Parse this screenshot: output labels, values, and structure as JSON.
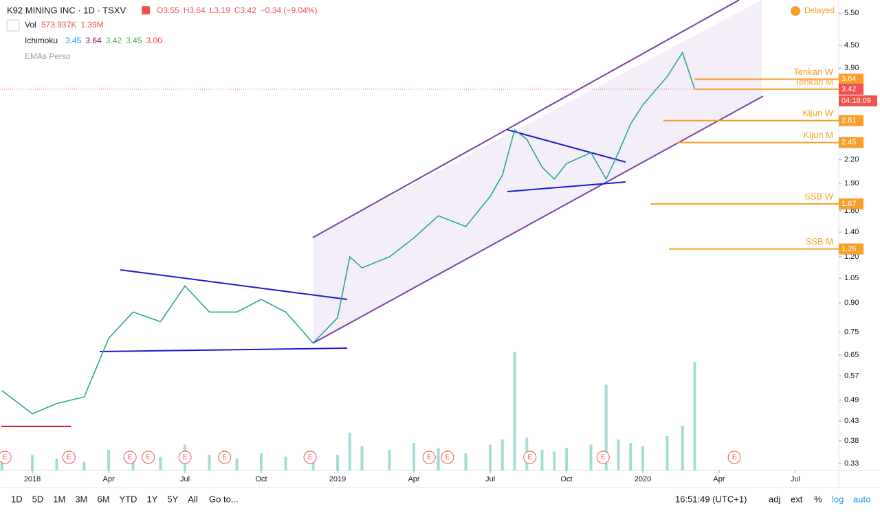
{
  "header": {
    "symbol": "K92 MINING INC · 1D · TSXV",
    "ohlc": [
      "O3.55",
      "H3.64",
      "L3.19",
      "C3.42",
      "−0.34 (−9.04%)"
    ],
    "status": "Delayed"
  },
  "legend": {
    "volume": {
      "name": "Vol",
      "items": [
        "573.937K",
        "1.39M"
      ]
    },
    "ichimoku": {
      "name": "Ichimoku",
      "items": [
        "3.45",
        "3.64",
        "3.42",
        "3.45",
        "3.00"
      ]
    },
    "emas": {
      "name": "EMAs Perso"
    }
  },
  "chart_data": {
    "type": "line",
    "log_scale": true,
    "x": [
      2017.9,
      2018.0,
      2018.08,
      2018.17,
      2018.25,
      2018.33,
      2018.42,
      2018.5,
      2018.58,
      2018.67,
      2018.75,
      2018.83,
      2018.92,
      2019.0,
      2019.04,
      2019.08,
      2019.17,
      2019.25,
      2019.33,
      2019.42,
      2019.5,
      2019.54,
      2019.58,
      2019.62,
      2019.67,
      2019.71,
      2019.75,
      2019.83,
      2019.88,
      2019.92,
      2019.96,
      2020.0,
      2020.08,
      2020.13,
      2020.17
    ],
    "series": [
      {
        "name": "Close",
        "color": "#26a69a",
        "values": [
          0.52,
          0.45,
          0.48,
          0.5,
          0.72,
          0.85,
          0.8,
          1.0,
          0.85,
          0.85,
          0.92,
          0.85,
          0.7,
          0.82,
          1.2,
          1.12,
          1.2,
          1.35,
          1.55,
          1.45,
          1.75,
          2.0,
          2.65,
          2.5,
          2.1,
          1.95,
          2.15,
          2.3,
          1.95,
          2.3,
          2.75,
          3.1,
          3.7,
          4.3,
          3.42
        ]
      }
    ],
    "volume": {
      "color": "#7fcdc4",
      "values": [
        600000,
        900000,
        700000,
        500000,
        1200000,
        1000000,
        800000,
        1500000,
        900000,
        700000,
        1000000,
        800000,
        1100000,
        900000,
        2200000,
        1400000,
        1200000,
        1600000,
        1300000,
        1000000,
        1500000,
        1800000,
        6900000,
        1900000,
        1200000,
        1100000,
        1300000,
        1500000,
        5000000,
        1800000,
        1600000,
        1400000,
        2000000,
        2600000,
        6300000
      ],
      "ylim": [
        0,
        10000000
      ]
    },
    "xlim": [
      2017.894,
      2020.642
    ],
    "xticks": [
      {
        "value": 2018,
        "label": "2018"
      },
      {
        "value": 2018.25,
        "label": "Apr"
      },
      {
        "value": 2018.5,
        "label": "Jul"
      },
      {
        "value": 2018.75,
        "label": "Oct"
      },
      {
        "value": 2019,
        "label": "2019"
      },
      {
        "value": 2019.25,
        "label": "Apr"
      },
      {
        "value": 2019.5,
        "label": "Jul"
      },
      {
        "value": 2019.75,
        "label": "Oct"
      },
      {
        "value": 2020,
        "label": "2020"
      },
      {
        "value": 2020.25,
        "label": "Apr"
      },
      {
        "value": 2020.5,
        "label": "Jul"
      }
    ],
    "ylim": [
      0.316,
      5.97
    ],
    "yticks": [
      {
        "value": 5.5,
        "label": "5.50"
      },
      {
        "value": 4.5,
        "label": "4.50"
      },
      {
        "value": 3.9,
        "label": "3.90"
      },
      {
        "value": 2.2,
        "label": "2.20"
      },
      {
        "value": 1.9,
        "label": "1.90"
      },
      {
        "value": 1.6,
        "label": "1.60"
      },
      {
        "value": 1.4,
        "label": "1.40"
      },
      {
        "value": 1.2,
        "label": "1.20"
      },
      1.05,
      {
        "value": 0.9,
        "label": "0.90"
      },
      0.75,
      0.65,
      0.57,
      0.49,
      0.43,
      0.38,
      0.33
    ],
    "levels": [
      {
        "name": "Tenkan W",
        "value": 3.64
      },
      {
        "name": "Tenkan M",
        "value": 3.42
      },
      {
        "name": "Kijun W",
        "value": 2.81
      },
      {
        "name": "Kijun M",
        "value": 2.45
      },
      {
        "name": "SSB W",
        "value": 1.67
      },
      {
        "name": "SSB M",
        "value": 1.26
      }
    ],
    "countdown": "04:18:09",
    "earnings": {
      "label": "E",
      "x": [
        2017.91,
        2018.12,
        2018.32,
        2018.38,
        2018.5,
        2018.63,
        2018.91,
        2019.3,
        2019.36,
        2019.63,
        2019.87,
        2020.3
      ]
    }
  },
  "toolbar": {
    "ranges": [
      "1D",
      "5D",
      "1M",
      "3M",
      "6M",
      "YTD",
      "1Y",
      "5Y",
      "All"
    ],
    "goto": "Go to...",
    "clock": "16:51:49 (UTC+1)",
    "options": [
      "adj",
      "ext",
      "%",
      "log",
      "auto"
    ]
  }
}
